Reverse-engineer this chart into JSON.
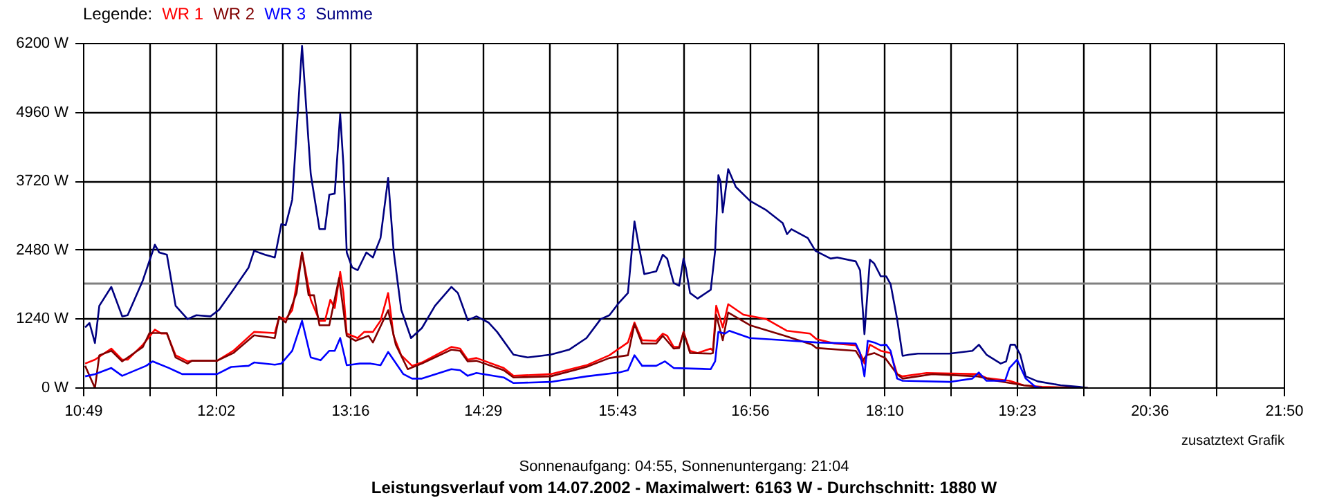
{
  "chart_data": {
    "type": "line",
    "title": "Leistungsverlauf vom 14.07.2002 - Maximalwert: 6163 W - Durchschnitt: 1880 W",
    "subtitle": "Sonnenaufgang: 04:55, Sonnenuntergang: 21:04",
    "legend_title": "Legende:",
    "annotations": [
      "zusatztext Grafik"
    ],
    "xlim": [
      10.8167,
      21.8333
    ],
    "xticks": [
      {
        "value": 10.8167,
        "label": "10:49"
      },
      {
        "value": 11.425,
        "label": null
      },
      {
        "value": 12.0333,
        "label": "12:02"
      },
      {
        "value": 12.65,
        "label": null
      },
      {
        "value": 13.2667,
        "label": "13:16"
      },
      {
        "value": 13.875,
        "label": null
      },
      {
        "value": 14.4833,
        "label": "14:29"
      },
      {
        "value": 15.1,
        "label": null
      },
      {
        "value": 15.7167,
        "label": "15:43"
      },
      {
        "value": 16.325,
        "label": null
      },
      {
        "value": 16.9333,
        "label": "16:56"
      },
      {
        "value": 17.55,
        "label": null
      },
      {
        "value": 18.1667,
        "label": "18:10"
      },
      {
        "value": 18.775,
        "label": null
      },
      {
        "value": 19.3833,
        "label": "19:23"
      },
      {
        "value": 19.9917,
        "label": null
      },
      {
        "value": 20.6,
        "label": "20:36"
      },
      {
        "value": 21.2167,
        "label": null
      },
      {
        "value": 21.8333,
        "label": "21:50"
      }
    ],
    "ylim": [
      0,
      6200
    ],
    "yticks": [
      {
        "value": 0,
        "label": "0 W"
      },
      {
        "value": 1240,
        "label": "1240 W"
      },
      {
        "value": 2480,
        "label": "2480 W"
      },
      {
        "value": 3720,
        "label": "3720 W"
      },
      {
        "value": 4960,
        "label": "4960 W"
      },
      {
        "value": 6200,
        "label": "6200 W"
      }
    ],
    "grid": true,
    "ref_lines": [
      {
        "axis": "y",
        "value": 1880,
        "color": "#808080"
      }
    ],
    "series": [
      {
        "name": "WR 1",
        "color": "#ff0000",
        "x": [
          10.83,
          10.92,
          11.07,
          11.17,
          11.22,
          11.36,
          11.47,
          11.53,
          11.58,
          11.66,
          11.77,
          11.81,
          12.04,
          12.19,
          12.38,
          12.57,
          12.61,
          12.67,
          12.73,
          12.82,
          12.9,
          12.98,
          13.03,
          13.08,
          13.12,
          13.17,
          13.2,
          13.23,
          13.33,
          13.39,
          13.47,
          13.54,
          13.61,
          13.66,
          13.73,
          13.83,
          13.92,
          14.19,
          14.27,
          14.34,
          14.42,
          14.67,
          14.76,
          15.1,
          15.43,
          15.64,
          15.81,
          15.87,
          15.94,
          16.07,
          16.13,
          16.17,
          16.23,
          16.28,
          16.32,
          16.38,
          16.45,
          16.57,
          16.59,
          16.62,
          16.68,
          16.73,
          16.87,
          17.08,
          17.27,
          17.48,
          17.54,
          17.71,
          17.9,
          17.96,
          17.98,
          18.03,
          18.13,
          18.22,
          18.28,
          18.33,
          18.47,
          18.55,
          19.02,
          19.1,
          19.31,
          19.44,
          19.61,
          20.03
        ],
        "values": [
          440,
          510,
          710,
          510,
          510,
          780,
          1050,
          980,
          980,
          590,
          480,
          490,
          490,
          670,
          1010,
          990,
          1280,
          1240,
          1400,
          2440,
          1590,
          1210,
          1210,
          1590,
          1440,
          2090,
          1710,
          980,
          900,
          1010,
          1010,
          1210,
          1710,
          940,
          590,
          400,
          460,
          740,
          710,
          510,
          540,
          360,
          220,
          250,
          410,
          590,
          820,
          1180,
          860,
          850,
          980,
          940,
          740,
          740,
          1010,
          670,
          630,
          710,
          670,
          1480,
          1090,
          1510,
          1320,
          1240,
          1030,
          980,
          880,
          800,
          770,
          550,
          440,
          780,
          670,
          630,
          250,
          210,
          250,
          270,
          250,
          180,
          130,
          50,
          20,
          0
        ]
      },
      {
        "name": "WR 2",
        "color": "#800000",
        "x": [
          10.83,
          10.92,
          10.96,
          11.07,
          11.17,
          11.36,
          11.42,
          11.58,
          11.66,
          11.77,
          11.81,
          12.04,
          12.19,
          12.38,
          12.57,
          12.61,
          12.67,
          12.77,
          12.82,
          12.88,
          12.93,
          12.98,
          13.07,
          13.16,
          13.2,
          13.23,
          13.31,
          13.43,
          13.47,
          13.61,
          13.68,
          13.79,
          13.92,
          14.19,
          14.27,
          14.34,
          14.42,
          14.67,
          14.76,
          15.1,
          15.43,
          15.64,
          15.81,
          15.87,
          15.94,
          16.07,
          16.13,
          16.23,
          16.28,
          16.32,
          16.38,
          16.57,
          16.59,
          16.62,
          16.68,
          16.73,
          16.93,
          17.25,
          17.5,
          17.54,
          17.9,
          17.96,
          18.0,
          18.07,
          18.17,
          18.28,
          18.33,
          18.47,
          18.6,
          19.02,
          19.19,
          19.44,
          19.61,
          20.03
        ],
        "values": [
          400,
          0,
          590,
          670,
          480,
          740,
          990,
          990,
          550,
          440,
          490,
          490,
          630,
          950,
          900,
          1280,
          1180,
          1710,
          2440,
          1670,
          1670,
          1130,
          1130,
          1980,
          1400,
          940,
          850,
          940,
          820,
          1400,
          780,
          340,
          440,
          690,
          670,
          480,
          490,
          320,
          190,
          210,
          380,
          540,
          590,
          1150,
          800,
          800,
          940,
          710,
          720,
          1000,
          630,
          620,
          630,
          1320,
          860,
          1360,
          1130,
          940,
          780,
          720,
          670,
          480,
          590,
          630,
          540,
          250,
          170,
          210,
          250,
          210,
          130,
          50,
          10,
          0
        ]
      },
      {
        "name": "WR 3",
        "color": "#0000ff",
        "x": [
          10.83,
          10.92,
          11.07,
          11.17,
          11.39,
          11.45,
          11.6,
          11.72,
          12.04,
          12.17,
          12.33,
          12.38,
          12.57,
          12.63,
          12.73,
          12.82,
          12.9,
          12.99,
          13.07,
          13.12,
          13.17,
          13.23,
          13.35,
          13.45,
          13.54,
          13.61,
          13.75,
          13.83,
          13.92,
          14.19,
          14.27,
          14.34,
          14.42,
          14.67,
          14.76,
          15.1,
          15.43,
          15.73,
          15.81,
          15.87,
          15.94,
          16.07,
          16.15,
          16.23,
          16.57,
          16.61,
          16.64,
          16.7,
          16.74,
          16.93,
          17.25,
          17.54,
          17.9,
          17.94,
          17.98,
          18.01,
          18.07,
          18.13,
          18.18,
          18.22,
          18.28,
          18.33,
          18.76,
          18.97,
          19.03,
          19.1,
          19.27,
          19.31,
          19.38,
          19.46,
          19.55,
          19.61
        ],
        "values": [
          210,
          250,
          360,
          220,
          400,
          480,
          360,
          250,
          250,
          380,
          400,
          460,
          420,
          440,
          670,
          1210,
          550,
          500,
          670,
          670,
          900,
          410,
          440,
          440,
          410,
          650,
          250,
          170,
          170,
          340,
          320,
          220,
          270,
          190,
          90,
          110,
          210,
          280,
          320,
          590,
          400,
          400,
          480,
          360,
          340,
          480,
          1010,
          980,
          1030,
          900,
          860,
          820,
          800,
          630,
          210,
          850,
          820,
          770,
          780,
          670,
          170,
          130,
          110,
          170,
          280,
          130,
          130,
          360,
          510,
          170,
          20,
          0
        ]
      },
      {
        "name": "Summe",
        "color": "#000080",
        "x": [
          10.83,
          10.87,
          10.92,
          10.96,
          11.07,
          11.17,
          11.22,
          11.36,
          11.47,
          11.51,
          11.58,
          11.66,
          11.77,
          11.85,
          11.98,
          12.06,
          12.19,
          12.33,
          12.38,
          12.48,
          12.57,
          12.63,
          12.67,
          12.73,
          12.82,
          12.9,
          12.98,
          13.03,
          13.07,
          13.12,
          13.17,
          13.2,
          13.23,
          13.28,
          13.33,
          13.41,
          13.47,
          13.54,
          13.61,
          13.66,
          13.73,
          13.82,
          13.92,
          14.04,
          14.19,
          14.25,
          14.34,
          14.42,
          14.53,
          14.61,
          14.76,
          14.89,
          15.1,
          15.27,
          15.43,
          15.56,
          15.64,
          15.73,
          15.81,
          15.87,
          15.91,
          15.96,
          16.07,
          16.13,
          16.17,
          16.23,
          16.28,
          16.32,
          16.34,
          16.38,
          16.45,
          16.57,
          16.61,
          16.64,
          16.66,
          16.68,
          16.73,
          16.8,
          16.93,
          17.08,
          17.23,
          17.27,
          17.31,
          17.46,
          17.53,
          17.67,
          17.73,
          17.9,
          17.94,
          17.98,
          18.03,
          18.07,
          18.13,
          18.18,
          18.22,
          18.28,
          18.33,
          18.39,
          18.47,
          18.6,
          18.76,
          18.97,
          19.03,
          19.1,
          19.23,
          19.28,
          19.32,
          19.36,
          19.41,
          19.46,
          19.57,
          19.78,
          19.95,
          20.03
        ],
        "values": [
          1090,
          1170,
          810,
          1480,
          1820,
          1290,
          1310,
          1940,
          2580,
          2440,
          2400,
          1480,
          1240,
          1310,
          1290,
          1410,
          1770,
          2170,
          2470,
          2400,
          2350,
          2950,
          2930,
          3390,
          6160,
          3850,
          2860,
          2860,
          3480,
          3500,
          4930,
          4010,
          2440,
          2170,
          2120,
          2440,
          2350,
          2700,
          3780,
          2470,
          1410,
          900,
          1080,
          1480,
          1820,
          1710,
          1220,
          1290,
          1180,
          1010,
          600,
          550,
          600,
          690,
          900,
          1240,
          1310,
          1540,
          1710,
          3000,
          2560,
          2050,
          2100,
          2400,
          2330,
          1890,
          1840,
          2330,
          2170,
          1710,
          1610,
          1770,
          2470,
          3830,
          3710,
          3160,
          3940,
          3620,
          3370,
          3200,
          2970,
          2770,
          2860,
          2700,
          2470,
          2330,
          2350,
          2280,
          2120,
          970,
          2310,
          2240,
          2010,
          2010,
          1870,
          1240,
          580,
          600,
          620,
          620,
          620,
          670,
          780,
          600,
          440,
          480,
          780,
          780,
          600,
          210,
          120,
          50,
          20,
          0
        ]
      }
    ]
  }
}
